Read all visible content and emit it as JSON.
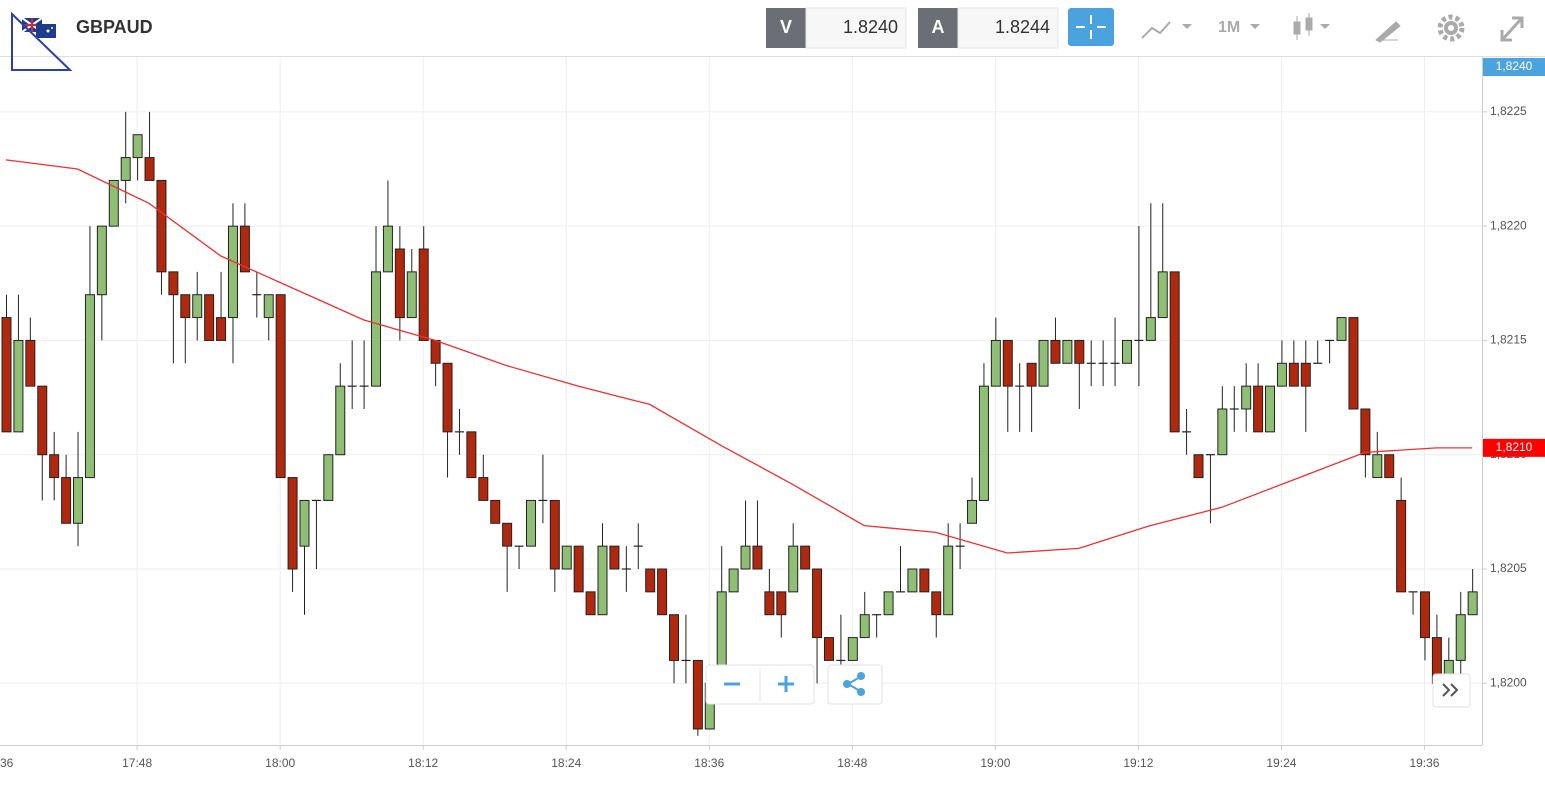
{
  "header": {
    "symbol": "GBPAUD",
    "bid_label": "V",
    "bid": "1.8240",
    "ask_label": "A",
    "ask": "1.8244",
    "timeframe": "1M"
  },
  "chart_data": {
    "type": "candlestick",
    "categories": [
      "17:37",
      "17:38",
      "17:39",
      "17:40",
      "17:41",
      "17:42",
      "17:43",
      "17:44",
      "17:45",
      "17:46",
      "17:47",
      "17:48",
      "17:49",
      "17:50",
      "17:51",
      "17:52",
      "17:53",
      "17:54",
      "17:55",
      "17:56",
      "17:57",
      "17:58",
      "17:59",
      "18:00",
      "18:01",
      "18:02",
      "18:03",
      "18:04",
      "18:05",
      "18:06",
      "18:07",
      "18:08",
      "18:09",
      "18:10",
      "18:11",
      "18:12",
      "18:13",
      "18:14",
      "18:15",
      "18:16",
      "18:17",
      "18:18",
      "18:19",
      "18:20",
      "18:21",
      "18:22",
      "18:23",
      "18:24",
      "18:25",
      "18:26",
      "18:27",
      "18:28",
      "18:29",
      "18:30",
      "18:31",
      "18:32",
      "18:33",
      "18:34",
      "18:35",
      "18:36",
      "18:37",
      "18:38",
      "18:39",
      "18:40",
      "18:41",
      "18:42",
      "18:43",
      "18:44",
      "18:45",
      "18:46",
      "18:47",
      "18:48",
      "18:49",
      "18:50",
      "18:51",
      "18:52",
      "18:53",
      "18:54",
      "18:55",
      "18:56",
      "18:57",
      "18:58",
      "18:59",
      "19:00",
      "19:01",
      "19:02",
      "19:03",
      "19:04",
      "19:05",
      "19:06",
      "19:07",
      "19:08",
      "19:09",
      "19:10",
      "19:11",
      "19:12",
      "19:13",
      "19:14",
      "19:15",
      "19:16",
      "19:17",
      "19:18",
      "19:19",
      "19:20",
      "19:21",
      "19:22",
      "19:23",
      "19:24",
      "19:25",
      "19:26",
      "19:27",
      "19:28",
      "19:29",
      "19:30",
      "19:31",
      "19:32",
      "19:33",
      "19:34",
      "19:35",
      "19:36",
      "19:37",
      "19:38",
      "19:39",
      "19:40"
    ],
    "open": [
      1.8216,
      1.8211,
      1.8215,
      1.8213,
      1.821,
      1.8209,
      1.8207,
      1.8209,
      1.8217,
      1.822,
      1.8222,
      1.8223,
      1.8223,
      1.8222,
      1.8218,
      1.8217,
      1.8216,
      1.8217,
      1.8216,
      1.8216,
      1.822,
      1.8217,
      1.8216,
      1.8217,
      1.8209,
      1.8206,
      1.8208,
      1.8208,
      1.821,
      1.8213,
      1.8213,
      1.8213,
      1.8218,
      1.8219,
      1.8216,
      1.8219,
      1.8215,
      1.8214,
      1.8211,
      1.8211,
      1.8209,
      1.8208,
      1.8207,
      1.8206,
      1.8206,
      1.8208,
      1.8208,
      1.8205,
      1.8206,
      1.8204,
      1.8203,
      1.8206,
      1.8205,
      1.8206,
      1.8205,
      1.8205,
      1.8203,
      1.8201,
      1.8201,
      1.8198,
      1.82,
      1.8204,
      1.8205,
      1.8206,
      1.8204,
      1.8204,
      1.8204,
      1.8206,
      1.8205,
      1.8202,
      1.8201,
      1.8201,
      1.8202,
      1.8203,
      1.8203,
      1.8204,
      1.8204,
      1.8205,
      1.8204,
      1.8203,
      1.8206,
      1.8207,
      1.8208,
      1.8213,
      1.8215,
      1.8213,
      1.8214,
      1.8213,
      1.8215,
      1.8214,
      1.8215,
      1.8214,
      1.8214,
      1.8214,
      1.8214,
      1.8215,
      1.8215,
      1.8216,
      1.8218,
      1.8211,
      1.821,
      1.821,
      1.821,
      1.8212,
      1.8212,
      1.8213,
      1.8211,
      1.8213,
      1.8214,
      1.8214,
      1.8214,
      1.8215,
      1.8215,
      1.8216,
      1.8212,
      1.8209,
      1.821,
      1.8208,
      1.8204,
      1.8204,
      1.8202,
      1.82,
      1.8201,
      1.8203
    ],
    "high": [
      1.8217,
      1.8217,
      1.8216,
      1.8213,
      1.8211,
      1.821,
      1.8211,
      1.822,
      1.822,
      1.8222,
      1.8225,
      1.8224,
      1.8225,
      1.8222,
      1.8218,
      1.8217,
      1.8218,
      1.8217,
      1.8218,
      1.8221,
      1.8221,
      1.8218,
      1.8217,
      1.8217,
      1.8209,
      1.8208,
      1.8208,
      1.821,
      1.8214,
      1.8215,
      1.8215,
      1.822,
      1.8222,
      1.822,
      1.8219,
      1.822,
      1.8215,
      1.8214,
      1.8212,
      1.8211,
      1.821,
      1.8208,
      1.8207,
      1.8206,
      1.8208,
      1.821,
      1.8208,
      1.8206,
      1.8206,
      1.8204,
      1.8207,
      1.8206,
      1.8206,
      1.8207,
      1.8205,
      1.8205,
      1.8203,
      1.8203,
      1.8201,
      1.82,
      1.8206,
      1.8205,
      1.8208,
      1.8208,
      1.8205,
      1.8204,
      1.8207,
      1.8206,
      1.8205,
      1.8202,
      1.8203,
      1.8202,
      1.8204,
      1.8203,
      1.8204,
      1.8206,
      1.8205,
      1.8205,
      1.8204,
      1.8207,
      1.8207,
      1.8209,
      1.8214,
      1.8216,
      1.8215,
      1.8214,
      1.8214,
      1.8215,
      1.8216,
      1.8215,
      1.8215,
      1.8215,
      1.8215,
      1.8216,
      1.8215,
      1.822,
      1.8221,
      1.8221,
      1.8218,
      1.8212,
      1.821,
      1.821,
      1.8213,
      1.8213,
      1.8214,
      1.8214,
      1.8213,
      1.8215,
      1.8215,
      1.8215,
      1.8215,
      1.8215,
      1.8216,
      1.8216,
      1.8212,
      1.8211,
      1.821,
      1.8209,
      1.8204,
      1.8204,
      1.8203,
      1.8202,
      1.8204,
      1.8205
    ],
    "low": [
      1.8211,
      1.8211,
      1.8213,
      1.8208,
      1.8208,
      1.8207,
      1.8206,
      1.8209,
      1.8215,
      1.822,
      1.8221,
      1.8222,
      1.8222,
      1.8217,
      1.8214,
      1.8214,
      1.8215,
      1.8215,
      1.8215,
      1.8214,
      1.8218,
      1.8216,
      1.8215,
      1.8209,
      1.8204,
      1.8203,
      1.8205,
      1.8208,
      1.821,
      1.8212,
      1.8212,
      1.8213,
      1.8218,
      1.8215,
      1.8216,
      1.8215,
      1.8213,
      1.8209,
      1.821,
      1.8209,
      1.8208,
      1.8207,
      1.8204,
      1.8205,
      1.8206,
      1.8207,
      1.8204,
      1.8205,
      1.8204,
      1.8203,
      1.8203,
      1.8205,
      1.8204,
      1.8205,
      1.8204,
      1.8203,
      1.82,
      1.82,
      1.81977,
      1.8198,
      1.82,
      1.8204,
      1.8205,
      1.8205,
      1.8203,
      1.8202,
      1.8204,
      1.8205,
      1.82,
      1.8201,
      1.82,
      1.8201,
      1.8202,
      1.8202,
      1.8203,
      1.8204,
      1.8204,
      1.8204,
      1.8202,
      1.8203,
      1.8205,
      1.8207,
      1.8208,
      1.8213,
      1.8211,
      1.8211,
      1.8211,
      1.8213,
      1.8214,
      1.8214,
      1.8212,
      1.8213,
      1.8213,
      1.8213,
      1.8214,
      1.8213,
      1.8215,
      1.8216,
      1.8211,
      1.821,
      1.8209,
      1.8207,
      1.821,
      1.8211,
      1.8211,
      1.8211,
      1.8211,
      1.8213,
      1.8213,
      1.8211,
      1.8214,
      1.8214,
      1.8215,
      1.8212,
      1.8209,
      1.8209,
      1.8209,
      1.8204,
      1.8203,
      1.8201,
      1.82,
      1.8199,
      1.82,
      1.8203
    ],
    "close": [
      1.8211,
      1.8215,
      1.8213,
      1.821,
      1.8209,
      1.8207,
      1.8209,
      1.8217,
      1.822,
      1.8222,
      1.8223,
      1.8224,
      1.8222,
      1.8218,
      1.8217,
      1.8216,
      1.8217,
      1.8215,
      1.8215,
      1.822,
      1.8218,
      1.8217,
      1.8217,
      1.8209,
      1.8205,
      1.8208,
      1.8208,
      1.821,
      1.8213,
      1.8213,
      1.8213,
      1.8218,
      1.822,
      1.8216,
      1.8218,
      1.8215,
      1.8214,
      1.8211,
      1.8211,
      1.8209,
      1.8208,
      1.8207,
      1.8206,
      1.8206,
      1.8208,
      1.8208,
      1.8205,
      1.8206,
      1.8204,
      1.8203,
      1.8206,
      1.8205,
      1.8205,
      1.8206,
      1.8204,
      1.8203,
      1.8201,
      1.8201,
      1.8198,
      1.82,
      1.8204,
      1.8205,
      1.8206,
      1.8205,
      1.8203,
      1.8203,
      1.8206,
      1.8205,
      1.8202,
      1.8201,
      1.8201,
      1.8202,
      1.8203,
      1.8203,
      1.8204,
      1.8204,
      1.8205,
      1.8204,
      1.8203,
      1.8206,
      1.8206,
      1.8208,
      1.8213,
      1.8215,
      1.8213,
      1.8213,
      1.8213,
      1.8215,
      1.8214,
      1.8215,
      1.8214,
      1.8214,
      1.8214,
      1.8214,
      1.8215,
      1.8215,
      1.8216,
      1.8218,
      1.8211,
      1.8211,
      1.8209,
      1.821,
      1.8212,
      1.8212,
      1.8213,
      1.8211,
      1.8213,
      1.8214,
      1.8213,
      1.8213,
      1.8214,
      1.8215,
      1.8216,
      1.8212,
      1.821,
      1.821,
      1.8209,
      1.8204,
      1.8204,
      1.8202,
      1.82,
      1.8201,
      1.8203,
      1.8204
    ],
    "up_color": "#8fbf74",
    "down_color": "#b0280d",
    "ma": {
      "color": "#f03030",
      "x": [
        "17:37",
        "17:43",
        "17:49",
        "17:55",
        "18:01",
        "18:07",
        "18:13",
        "18:19",
        "18:25",
        "18:31",
        "18:37",
        "18:43",
        "18:49",
        "18:55",
        "19:01",
        "19:07",
        "19:13",
        "19:19",
        "19:25",
        "19:31",
        "19:37",
        "19:40"
      ],
      "values": [
        1.82229,
        1.82225,
        1.8221,
        1.82187,
        1.82173,
        1.82159,
        1.8215,
        1.82139,
        1.8213,
        1.82122,
        1.82104,
        1.82087,
        1.82069,
        1.82066,
        1.82057,
        1.82059,
        1.82069,
        1.82077,
        1.82089,
        1.82101,
        1.82103,
        1.82103
      ],
      "last_label": "1,8210"
    },
    "current_price_label": "1,8240",
    "current_price_color": "#4aa3df",
    "ylim": [
      1.81973,
      1.82274
    ],
    "yticks": [
      {
        "value": 1.82,
        "label": "1,8200"
      },
      {
        "value": 1.8205,
        "label": "1,8205"
      },
      {
        "value": 1.821,
        "label": "1,8210"
      },
      {
        "value": 1.8215,
        "label": "1,8215"
      },
      {
        "value": 1.822,
        "label": "1,8220"
      },
      {
        "value": 1.8225,
        "label": "1,8225"
      }
    ],
    "xticks": [
      {
        "value": "17:36",
        "label": "36"
      },
      "17:48",
      "18:00",
      "18:12",
      "18:24",
      "18:36",
      "18:48",
      "19:00",
      "19:12",
      "19:24",
      "19:36"
    ],
    "grid": true
  }
}
